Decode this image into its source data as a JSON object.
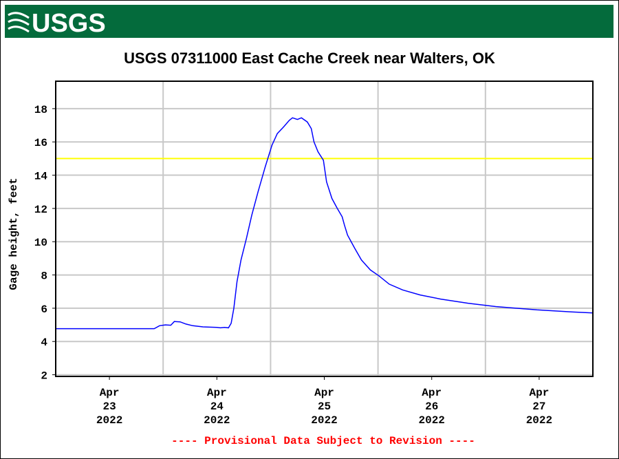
{
  "header": {
    "logo": "USGS"
  },
  "chart_data": {
    "type": "line",
    "title": "USGS 07311000 East Cache Creek near Walters, OK",
    "y_label": "Gage height, feet",
    "footer": "---- Provisional Data Subject to Revision ----",
    "xlim": [
      0,
      120
    ],
    "xticks": [
      {
        "value": 12,
        "label": "Apr\n23\n2022"
      },
      {
        "value": 36,
        "label": "Apr\n24\n2022"
      },
      {
        "value": 60,
        "label": "Apr\n25\n2022"
      },
      {
        "value": 84,
        "label": "Apr\n26\n2022"
      },
      {
        "value": 108,
        "label": "Apr\n27\n2022"
      }
    ],
    "xgrid": [
      24,
      48,
      72,
      96
    ],
    "ylim": [
      1.9,
      19.65
    ],
    "yticks": [
      2,
      4,
      6,
      8,
      10,
      12,
      14,
      16,
      18
    ],
    "grid": true,
    "reference_line": {
      "value": 15,
      "color": "#ffff00"
    },
    "series": [
      {
        "color": "#0000ff",
        "x": [
          0,
          22,
          23.2,
          24.5,
          25.7,
          26.5,
          27.8,
          29.1,
          30.6,
          32.9,
          36,
          36.8,
          37.7,
          38.6,
          39.2,
          39.8,
          40.5,
          41.4,
          42.6,
          43.8,
          45.2,
          46.8,
          48.3,
          49.5,
          50.9,
          52.2,
          52.9,
          54,
          54.9,
          56.2,
          57.1,
          57.7,
          58.6,
          59.8,
          60.5,
          61.7,
          62.9,
          64,
          64.5,
          65.2,
          66.8,
          68.3,
          70.3,
          72.2,
          74.5,
          77.5,
          81.4,
          86,
          92.2,
          98.3,
          107.5,
          115.2,
          120
        ],
        "values": [
          4.77,
          4.77,
          4.95,
          5.0,
          4.98,
          5.2,
          5.18,
          5.05,
          4.95,
          4.88,
          4.85,
          4.82,
          4.85,
          4.82,
          5.1,
          6.0,
          7.6,
          8.9,
          10.2,
          11.6,
          13.0,
          14.5,
          15.8,
          16.5,
          16.9,
          17.3,
          17.45,
          17.35,
          17.45,
          17.2,
          16.8,
          16.0,
          15.4,
          14.9,
          13.6,
          12.6,
          12.0,
          11.5,
          11.0,
          10.4,
          9.6,
          8.9,
          8.3,
          7.95,
          7.45,
          7.1,
          6.8,
          6.55,
          6.3,
          6.1,
          5.9,
          5.78,
          5.72
        ]
      }
    ]
  }
}
